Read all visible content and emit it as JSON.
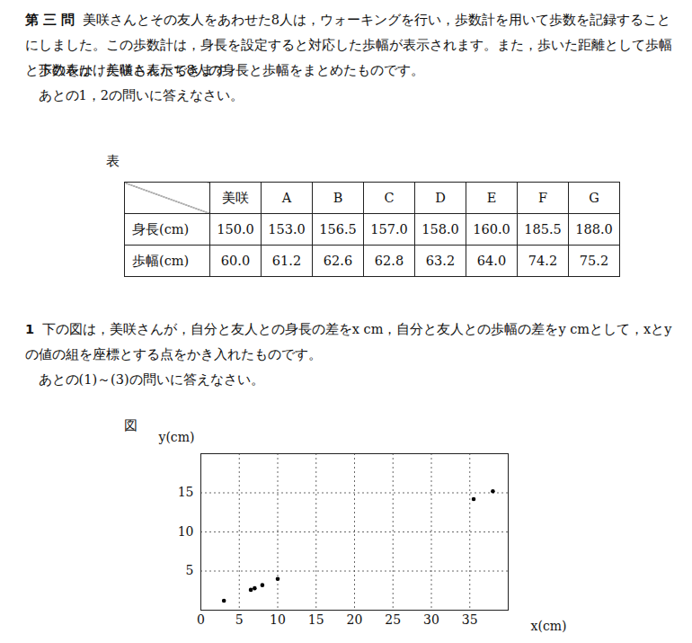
{
  "header": {
    "label": "第 三 問",
    "text": "美咲さんとその友人をあわせた8人は，ウォーキングを行い，歩数計を用いて歩数を記録することにしました。この歩数計は，身長を設定すると対応した歩幅が表示されます。また，歩いた距離として歩幅と歩数をかけた値も表示できます。"
  },
  "paragraphs": [
    "下の表は，美咲さんたち8人の身長と歩幅をまとめたものです。",
    "あとの1，2の問いに答えなさい。"
  ],
  "table": {
    "caption": "表",
    "header": [
      "美咲",
      "A",
      "B",
      "C",
      "D",
      "E",
      "F",
      "G"
    ],
    "rows": [
      [
        "身長(cm)",
        "150.0",
        "153.0",
        "156.5",
        "157.0",
        "158.0",
        "160.0",
        "185.5",
        "188.0"
      ],
      [
        "歩幅(cm)",
        "60.0",
        "61.2",
        "62.6",
        "62.8",
        "63.2",
        "64.0",
        "74.2",
        "75.2"
      ]
    ]
  },
  "question1": {
    "number": "1",
    "text": "下の図は，美咲さんが，自分と友人との身長の差をx cm，自分と友人との歩幅の差をy cmとして，xとyの値の組を座標とする点をかき入れたものです。",
    "instruction": "あとの(1)～(3)の問いに答えなさい。"
  },
  "chart_data": {
    "type": "scatter",
    "title": "図",
    "x_label": "x(cm)",
    "y_label": "y(cm)",
    "x": [
      3.0,
      6.5,
      7.0,
      8.0,
      10.0,
      35.5,
      38.0
    ],
    "values": [
      1.2,
      2.6,
      2.8,
      3.2,
      4.0,
      14.2,
      15.2
    ],
    "color": "#000000",
    "marker": "circle",
    "xlim": [
      0,
      40
    ],
    "ylim": [
      0,
      20
    ],
    "xticks": [
      0,
      5,
      10,
      15,
      20,
      25,
      30,
      35
    ],
    "yticks": [
      5,
      10,
      15
    ],
    "grid": true
  }
}
